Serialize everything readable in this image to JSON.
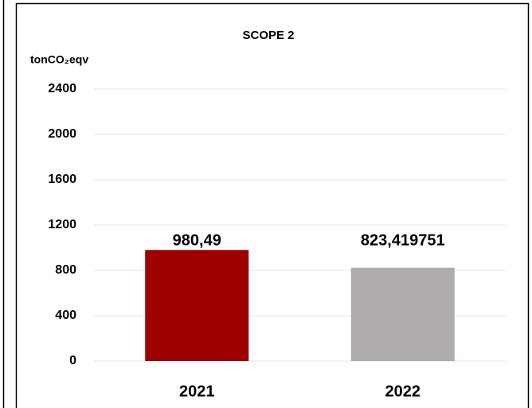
{
  "chart_data": {
    "type": "bar",
    "title": "SCOPE 2",
    "y_label": "tonCO₂eqv",
    "categories": [
      "2021",
      "2022"
    ],
    "values": [
      980.49,
      823.419751
    ],
    "value_labels": [
      "980,49",
      "823,419751"
    ],
    "colors": [
      "#9e0000",
      "#b0acab"
    ],
    "ylim": [
      0,
      2400
    ],
    "yticks": [
      0,
      400,
      800,
      1200,
      1600,
      2000,
      2400
    ],
    "grid": true
  }
}
